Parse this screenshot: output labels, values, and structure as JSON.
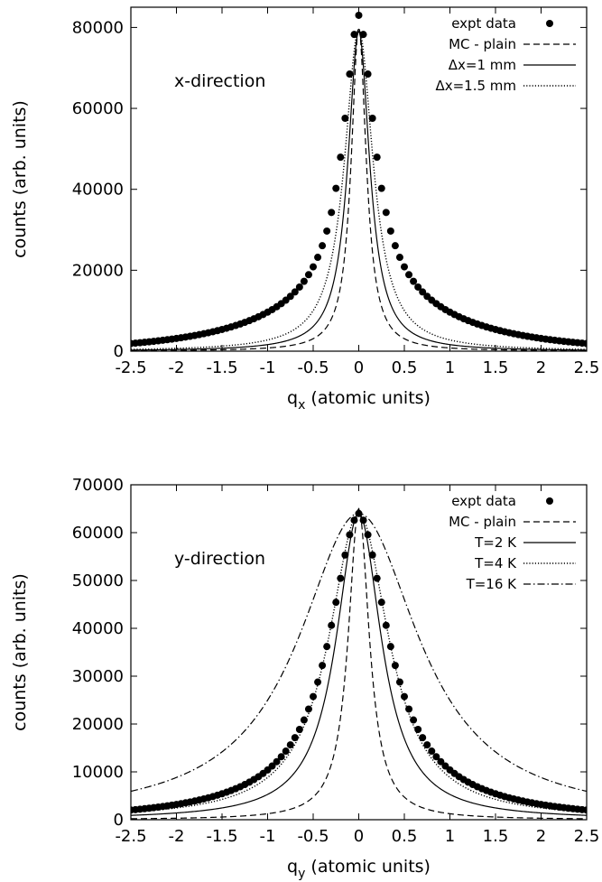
{
  "chart_data": [
    {
      "type": "scatter",
      "xlabel": "q",
      "xlabel_sub": "x",
      "xlabel_suffix": " (atomic units)",
      "ylabel": "counts (arb. units)",
      "annotation": "x-direction",
      "xlim": [
        -2.5,
        2.5
      ],
      "ylim": [
        0,
        85000
      ],
      "xticks": [
        "-2.5",
        "-2",
        "-1.5",
        "-1",
        "-0.5",
        "0",
        "0.5",
        "1",
        "1.5",
        "2",
        "2.5"
      ],
      "yticks": [
        "0",
        "20000",
        "40000",
        "60000",
        "80000"
      ],
      "grid": false,
      "legend_position": "top-right",
      "series": [
        {
          "name": "expt data",
          "kind": "points",
          "center": 0,
          "peak": 83000,
          "core_width": 0.2,
          "core_frac": 0.75,
          "tail_width": 0.95,
          "step": 0.05
        },
        {
          "name": "MC - plain",
          "kind": "line",
          "dash": "dashed",
          "center": 0,
          "peak": 80000,
          "width": 0.1
        },
        {
          "name": "Δx=1 mm",
          "kind": "line",
          "dash": "solid",
          "center": 0,
          "peak": 79000,
          "width": 0.145
        },
        {
          "name": "Δx=1.5 mm",
          "kind": "line",
          "dash": "dotted",
          "center": 0,
          "peak": 79500,
          "width": 0.19
        }
      ]
    },
    {
      "type": "scatter",
      "xlabel": "q",
      "xlabel_sub": "y",
      "xlabel_suffix": " (atomic units)",
      "ylabel": "counts (arb. units)",
      "annotation": "y-direction",
      "xlim": [
        -2.5,
        2.5
      ],
      "ylim": [
        0,
        70000
      ],
      "xticks": [
        "-2.5",
        "-2",
        "-1.5",
        "-1",
        "-0.5",
        "0",
        "0.5",
        "1",
        "1.5",
        "2",
        "2.5"
      ],
      "yticks": [
        "0",
        "10000",
        "20000",
        "30000",
        "40000",
        "50000",
        "60000",
        "70000"
      ],
      "grid": false,
      "legend_position": "top-right",
      "series": [
        {
          "name": "expt data",
          "kind": "points",
          "center": 0,
          "peak": 64000,
          "core_width": 0.38,
          "core_frac": 0.85,
          "tail_width": 1.0,
          "step": 0.05
        },
        {
          "name": "MC - plain",
          "kind": "line",
          "dash": "dashed",
          "center": 0,
          "peak": 65000,
          "width": 0.14
        },
        {
          "name": "T=2 K",
          "kind": "line",
          "dash": "solid",
          "center": 0,
          "peak": 64000,
          "width": 0.3
        },
        {
          "name": "T=4 K",
          "kind": "line",
          "dash": "dotted",
          "center": 0,
          "peak": 64000,
          "width": 0.4
        },
        {
          "name": "T=16 K",
          "kind": "line",
          "dash": "dashdot",
          "center": 0,
          "peak": 64000,
          "width": 0.8
        }
      ]
    }
  ]
}
